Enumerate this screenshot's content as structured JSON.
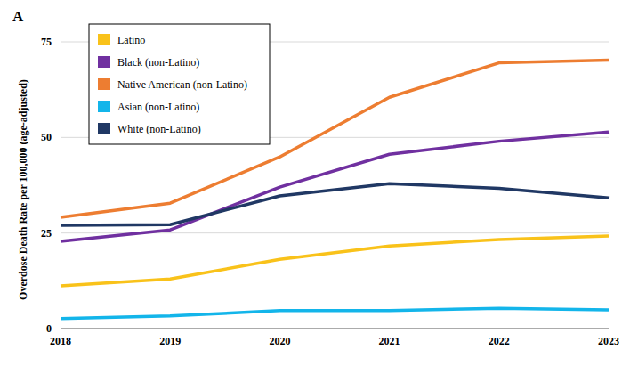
{
  "chart_data": {
    "type": "line",
    "title": "A",
    "y_label": "Overdose Death Rate per 100,000 (age-adjusted)",
    "categories": [
      "2018",
      "2019",
      "2020",
      "2021",
      "2022",
      "2023"
    ],
    "series": [
      {
        "name": "Latino",
        "color": "#f9c21a",
        "values": [
          11.2,
          13.0,
          18.1,
          21.6,
          23.3,
          24.2
        ]
      },
      {
        "name": "Black (non-Latino)",
        "color": "#7030a0",
        "values": [
          22.8,
          25.8,
          37.0,
          45.6,
          49.0,
          51.4
        ]
      },
      {
        "name": "Native American (non-Latino)",
        "color": "#ed7d31",
        "values": [
          29.1,
          32.8,
          44.9,
          60.5,
          69.5,
          70.2
        ]
      },
      {
        "name": "Asian (non-Latino)",
        "color": "#13b5ea",
        "values": [
          2.6,
          3.3,
          4.7,
          4.7,
          5.3,
          4.9
        ]
      },
      {
        "name": "White (non-Latino)",
        "color": "#203864",
        "values": [
          27.0,
          27.2,
          34.7,
          37.9,
          36.7,
          34.2
        ]
      }
    ],
    "ylim": [
      0,
      75
    ],
    "yticks": [
      0,
      25,
      50,
      75
    ],
    "grid": true,
    "legend": "top-left"
  }
}
